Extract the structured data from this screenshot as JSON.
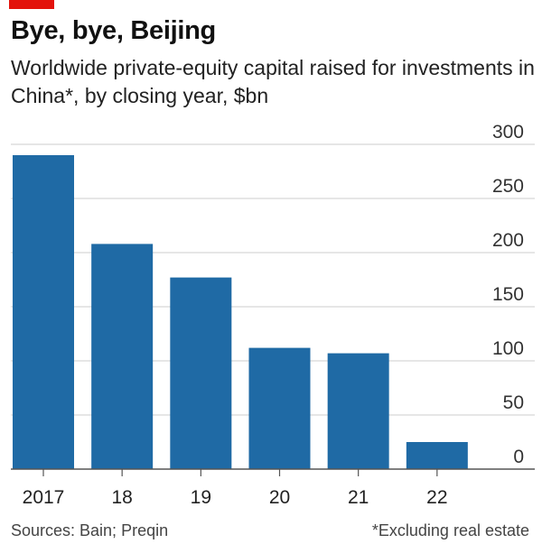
{
  "header": {
    "title": "Bye, bye, Beijing",
    "subtitle": "Worldwide private-equity capital raised for investments in China*, by closing year, $bn"
  },
  "footer": {
    "source": "Sources: Bain; Preqin",
    "note": "*Excluding real estate"
  },
  "colors": {
    "bar": "#1f6aa5",
    "accent": "#e3120b",
    "grid": "#cccccc",
    "axis": "#555555"
  },
  "chart_data": {
    "type": "bar",
    "categories": [
      "2017",
      "18",
      "19",
      "20",
      "21",
      "22"
    ],
    "values": [
      290,
      208,
      177,
      112,
      107,
      25
    ],
    "ylim": [
      0,
      300
    ],
    "yticks": [
      0,
      50,
      100,
      150,
      200,
      250,
      300
    ],
    "ytick_position": "right",
    "grid": true
  }
}
